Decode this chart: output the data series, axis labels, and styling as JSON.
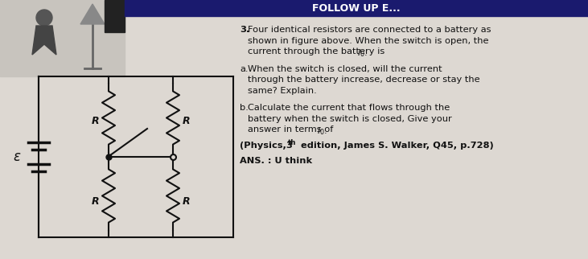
{
  "bg_color": "#ddd8d2",
  "header_color": "#1a1a6e",
  "text_color": "#111111",
  "circuit_color": "#111111",
  "fig_width": 7.31,
  "fig_height": 3.22,
  "question_number": "3.",
  "line1": "Four identical resistors are connected to a battery as",
  "line2": "shown in figure above. When the switch is open, the",
  "line3": "current through the battery is I",
  "line3_sub": "0",
  "part_a_label": "a.",
  "part_a_line1": "When the switch is closed, will the current",
  "part_a_line2": "through the battery increase, decrease or stay the",
  "part_a_line3": "same? Explain.",
  "part_b_label": "b.",
  "part_b_line1": "Calculate the current that flows through the",
  "part_b_line2": "battery when the switch is closed, Give your",
  "part_b_line3": "answer in terms of I",
  "part_b_sub": "0",
  "reference": "(Physics,3",
  "ref_super": "th",
  "ref_end": " edition, James S. Walker, Q45, p.728)",
  "ans": "ANS. : U think"
}
